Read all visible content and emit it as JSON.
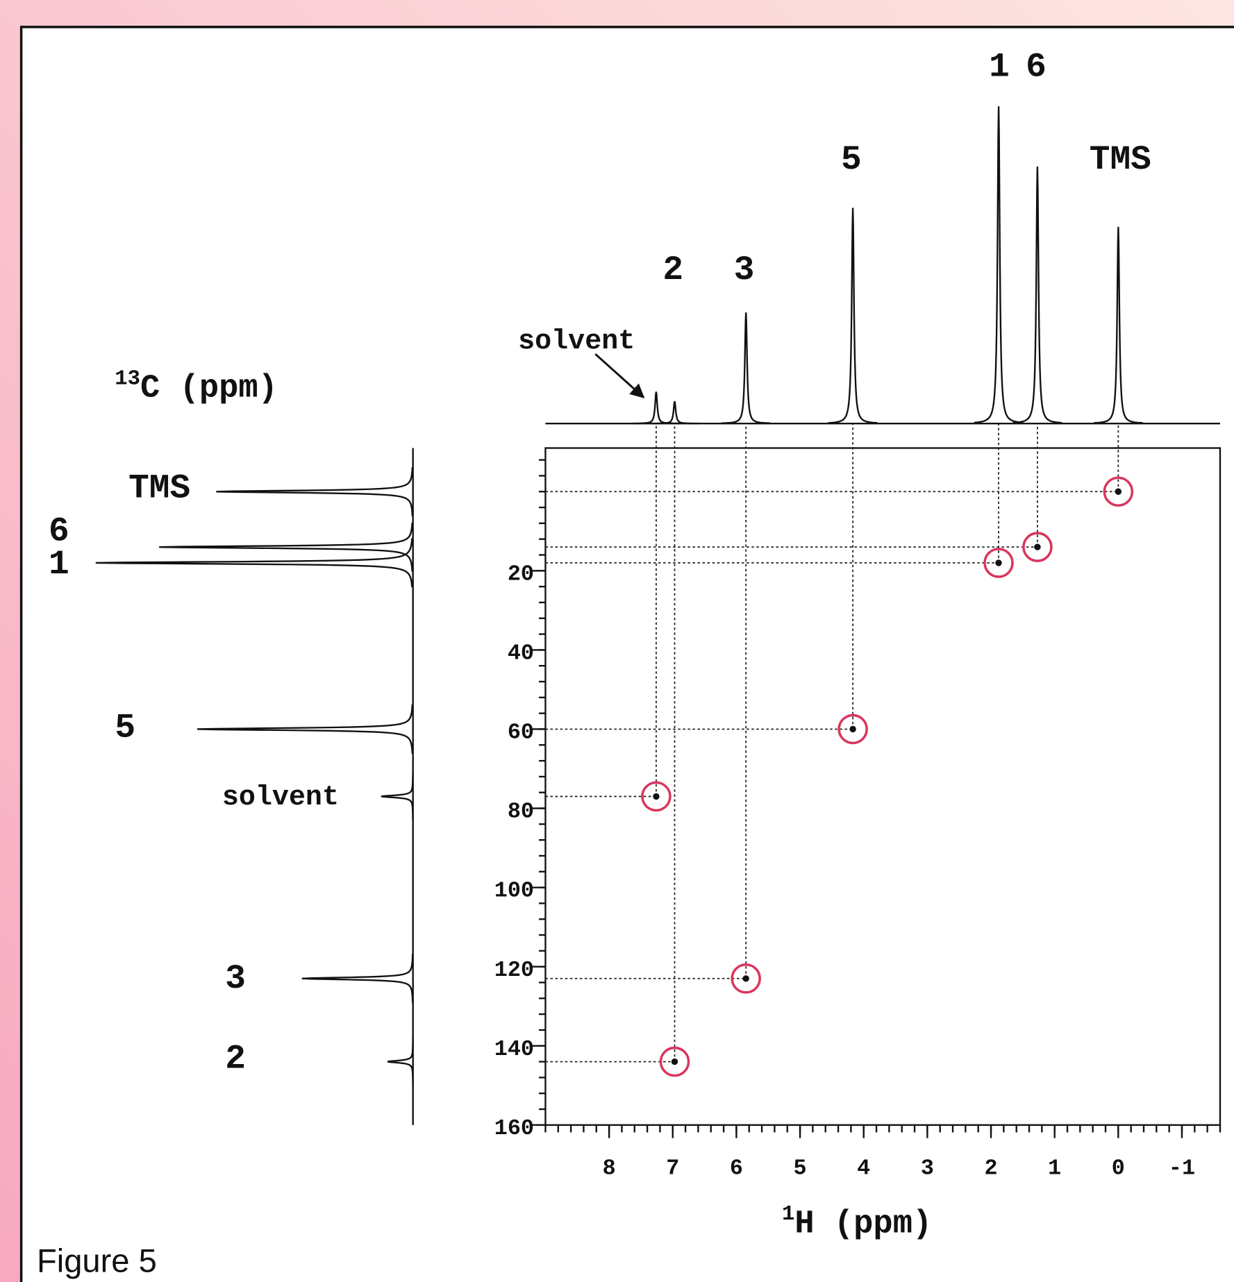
{
  "chart_data": {
    "type": "hsqc",
    "x_label_sup": "1",
    "x_label": "H  (ppm)",
    "y_label_sup": "13",
    "y_label": "C  (ppm)",
    "xlim": [
      -1.6,
      9
    ],
    "x_reversed": true,
    "xticks": [
      8,
      7,
      6,
      5,
      4,
      3,
      2,
      1,
      0,
      -1
    ],
    "x_minor_step": 0.2,
    "ylim": [
      -11,
      160
    ],
    "y_reversed": true,
    "yticks": [
      20,
      40,
      60,
      80,
      100,
      120,
      140,
      160
    ],
    "y_minor_step": 4,
    "peak_circle_color": "#d9365e",
    "signals": [
      {
        "label": "TMS",
        "h_shift": 0,
        "c_shift": 0,
        "h_height": 62,
        "c_height": 62
      },
      {
        "label": "6",
        "h_shift": 1.27,
        "c_shift": 14,
        "h_height": 81,
        "c_height": 80
      },
      {
        "label": "1",
        "h_shift": 1.88,
        "c_shift": 18,
        "h_height": 100,
        "c_height": 100
      },
      {
        "label": "5",
        "h_shift": 4.17,
        "c_shift": 60,
        "h_height": 68,
        "c_height": 68
      },
      {
        "label": "solvent",
        "h_shift": 7.26,
        "c_shift": 77,
        "h_height": 10,
        "c_height": 10
      },
      {
        "label": "3",
        "h_shift": 5.85,
        "c_shift": 123,
        "h_height": 35,
        "c_height": 35
      },
      {
        "label": "2",
        "h_shift": 6.97,
        "c_shift": 144,
        "h_height": 7,
        "c_height": 8
      }
    ]
  },
  "caption": "Figure 5"
}
